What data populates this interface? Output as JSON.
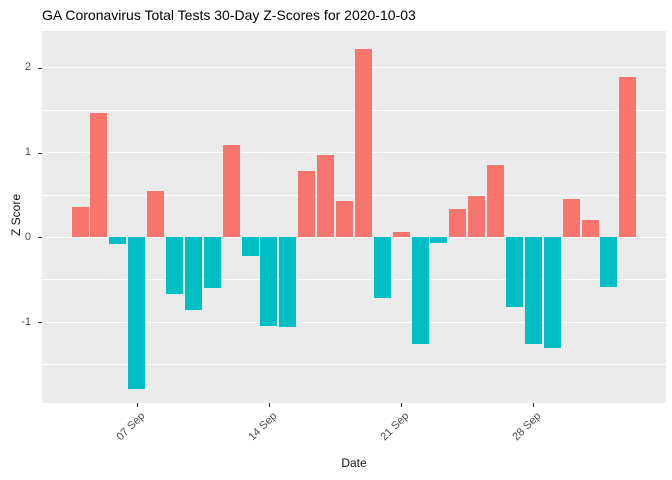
{
  "title": "GA Coronavirus Total Tests 30-Day Z-Scores for 2020-10-03",
  "chart_data": {
    "type": "bar",
    "title": "GA Coronavirus Total Tests 30-Day Z-Scores for 2020-10-03",
    "xlabel": "Date",
    "ylabel": "Z Score",
    "x": [
      "2020-09-04",
      "2020-09-05",
      "2020-09-06",
      "2020-09-07",
      "2020-09-08",
      "2020-09-09",
      "2020-09-10",
      "2020-09-11",
      "2020-09-12",
      "2020-09-13",
      "2020-09-14",
      "2020-09-15",
      "2020-09-16",
      "2020-09-17",
      "2020-09-18",
      "2020-09-19",
      "2020-09-20",
      "2020-09-21",
      "2020-09-22",
      "2020-09-23",
      "2020-09-24",
      "2020-09-25",
      "2020-09-26",
      "2020-09-27",
      "2020-09-28",
      "2020-09-29",
      "2020-09-30",
      "2020-10-01",
      "2020-10-02",
      "2020-10-03"
    ],
    "values": [
      0.36,
      1.47,
      -0.08,
      -1.79,
      0.55,
      -0.67,
      -0.86,
      -0.6,
      1.09,
      -0.22,
      -1.04,
      -1.06,
      0.78,
      0.97,
      0.43,
      2.22,
      -0.72,
      0.06,
      -1.26,
      -0.07,
      0.33,
      0.49,
      0.85,
      -0.82,
      -1.26,
      -1.3,
      0.45,
      0.2,
      -0.58,
      1.89
    ],
    "x_tick_labels": [
      "07 Sep",
      "14 Sep",
      "21 Sep",
      "28 Sep"
    ],
    "x_tick_indices": [
      3,
      10,
      17,
      24
    ],
    "y_tick_labels": [
      "2",
      "1",
      "0",
      "-1"
    ],
    "y_tick_values": [
      2,
      1,
      0,
      -1
    ],
    "y_minor_values": [
      1.5,
      0.5,
      -0.5,
      -1.5
    ],
    "ylim": [
      -1.95,
      2.43
    ],
    "grid": "major and minor white gridlines on gray panel",
    "legend": "none",
    "colors": {
      "positive_bar": "#F8766D",
      "negative_bar": "#00BFC4",
      "panel_background": "#EBEBEB",
      "gridline": "#FFFFFF",
      "tick_label": "#4D4D4D",
      "title_text": "#000000"
    }
  }
}
